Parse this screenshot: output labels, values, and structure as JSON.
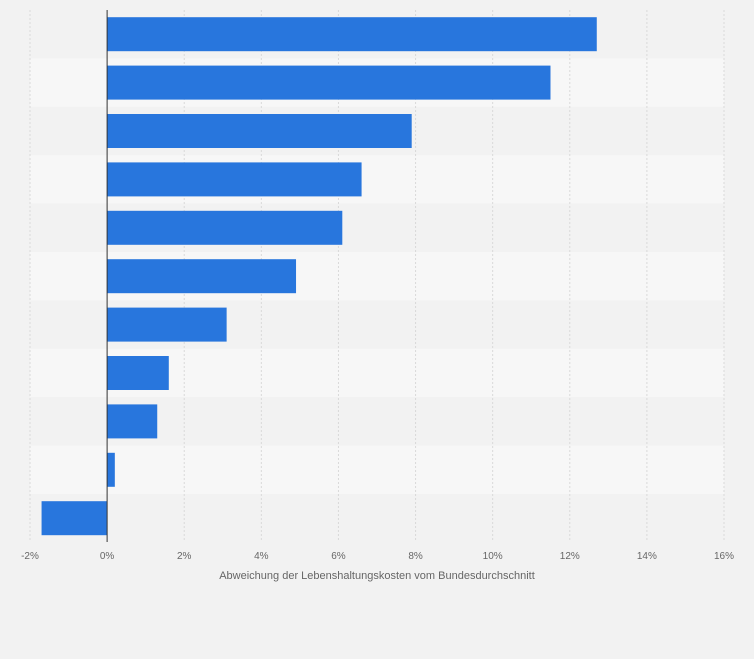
{
  "chart_data": {
    "type": "bar",
    "orientation": "horizontal",
    "categories": [
      "",
      "",
      "",
      "",
      "",
      "",
      "",
      "",
      "",
      "",
      ""
    ],
    "values": [
      12.7,
      11.5,
      7.9,
      6.6,
      6.1,
      4.9,
      3.1,
      1.6,
      1.3,
      0.2,
      -1.7
    ],
    "xlabel": "Abweichung der Lebenshaltungskosten vom Bundesdurchschnitt",
    "ylabel": "",
    "xlim": [
      -2,
      16
    ],
    "x_ticks": [
      "-2%",
      "0%",
      "2%",
      "4%",
      "6%",
      "8%",
      "10%",
      "12%",
      "14%",
      "16%"
    ],
    "grid": true,
    "legend": "none",
    "colors": {
      "bar": "#2876dd",
      "background": "#f2f2f2",
      "band_light": "#f7f7f7",
      "band_dark": "#f2f2f2",
      "gridline": "#d9d9d9",
      "zero_line": "#333333"
    }
  }
}
